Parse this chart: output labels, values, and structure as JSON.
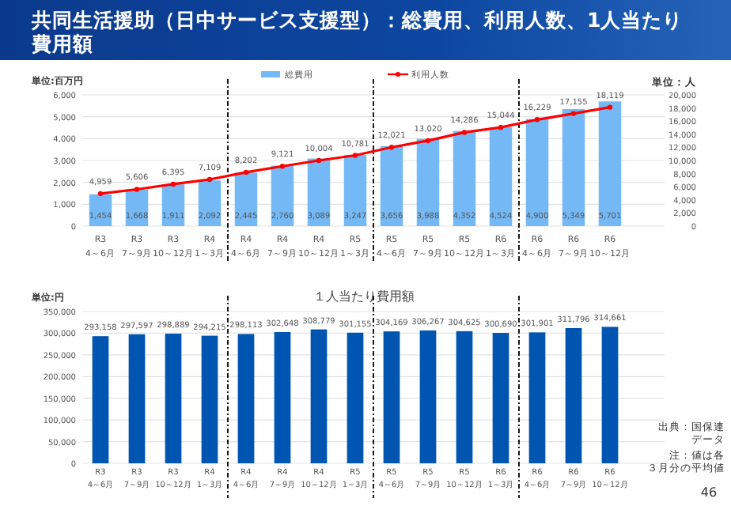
{
  "chart_data": [
    {
      "type": "bar",
      "title": "共同生活援助（日中サービス支援型）：総費用、利用人数、1人当たり費用額",
      "ylabel": "単位:百万円",
      "y2label": "単位：人",
      "categories": [
        "R3\n4～6月",
        "R3\n7～9月",
        "R3\n10～12月",
        "R4\n1～3月",
        "R4\n4～6月",
        "R4\n7～9月",
        "R4\n10～12月",
        "R5\n1～3月",
        "R5\n4～6月",
        "R5\n7～9月",
        "R5\n10～12月",
        "R6\n1～3月",
        "R6\n4～6月",
        "R6\n7～9月",
        "R6\n10～12月"
      ],
      "series": [
        {
          "name": "総費用",
          "color": "#74b9f5",
          "values": [
            1454,
            1668,
            1911,
            2092,
            2445,
            2760,
            3089,
            3247,
            3656,
            3988,
            4352,
            4524,
            4900,
            5349,
            5701
          ],
          "value_labels": [
            "1,454",
            "1,668",
            "1,911",
            "2,092",
            "2,445",
            "2,760",
            "3,089",
            "3,247",
            "3,656",
            "3,988",
            "4,352",
            "4,524",
            "4,900",
            "5,349",
            "5,701"
          ]
        },
        {
          "name": "利用人数",
          "type": "line",
          "axis": "y2",
          "color": "#ff0000",
          "marker": "circle",
          "values": [
            4959,
            5606,
            6395,
            7109,
            8202,
            9121,
            10004,
            10781,
            12021,
            13020,
            14286,
            15044,
            16229,
            17155,
            18119
          ],
          "value_labels": [
            "4,959",
            "5,606",
            "6,395",
            "7,109",
            "8,202",
            "9,121",
            "10,004",
            "10,781",
            "12,021",
            "13,020",
            "14,286",
            "15,044",
            "16,229",
            "17,155",
            "18,119"
          ]
        }
      ],
      "ylim": [
        0,
        6000
      ],
      "yticks": [
        0,
        {
          "value": 1000,
          "label": "1,000"
        },
        {
          "value": 2000,
          "label": "2,000"
        },
        {
          "value": 3000,
          "label": "3,000"
        },
        {
          "value": 4000,
          "label": "4,000"
        },
        {
          "value": 5000,
          "label": "5,000"
        },
        {
          "value": 6000,
          "label": "6,000"
        }
      ],
      "y2lim": [
        0,
        20000
      ],
      "y2ticks": [
        0,
        {
          "value": 2000,
          "label": "2,000"
        },
        {
          "value": 4000,
          "label": "4,000"
        },
        {
          "value": 6000,
          "label": "6,000"
        },
        {
          "value": 8000,
          "label": "8,000"
        },
        {
          "value": 10000,
          "label": "10,000"
        },
        {
          "value": 12000,
          "label": "12,000"
        },
        {
          "value": 14000,
          "label": "14,000"
        },
        {
          "value": 16000,
          "label": "16,000"
        },
        {
          "value": 18000,
          "label": "18,000"
        },
        {
          "value": 20000,
          "label": "20,000"
        }
      ],
      "grid": "y",
      "legend": "top"
    },
    {
      "type": "bar",
      "title": "１人当たり費用額",
      "ylabel": "単位:円",
      "categories": [
        "R3\n4～6月",
        "R3\n7～9月",
        "R3\n10～12月",
        "R4\n1～3月",
        "R4\n4～6月",
        "R4\n7～9月",
        "R4\n10～12月",
        "R5\n1～3月",
        "R5\n4～6月",
        "R5\n7～9月",
        "R5\n10～12月",
        "R6\n1～3月",
        "R6\n4～6月",
        "R6\n7～9月",
        "R6\n10～12月"
      ],
      "values": [
        293158,
        297597,
        298889,
        294215,
        298113,
        302648,
        308779,
        301155,
        304169,
        306267,
        304625,
        300690,
        301901,
        311796,
        314661
      ],
      "value_labels": [
        "293,158",
        "297,597",
        "298,889",
        "294,215",
        "298,113",
        "302,648",
        "308,779",
        "301,155",
        "304,169",
        "306,267",
        "304,625",
        "300,690",
        "301,901",
        "311,796",
        "314,661"
      ],
      "color": "#0055b0",
      "ylim": [
        0,
        350000
      ],
      "yticks": [
        0,
        {
          "value": 50000,
          "label": "50,000"
        },
        {
          "value": 100000,
          "label": "100,000"
        },
        {
          "value": 150000,
          "label": "150,000"
        },
        {
          "value": 200000,
          "label": "200,000"
        },
        {
          "value": 250000,
          "label": "250,000"
        },
        {
          "value": 300000,
          "label": "300,000"
        },
        {
          "value": 350000,
          "label": "350,000"
        }
      ],
      "grid": "y",
      "annotations": [
        "出典：国保連データ",
        "注：値は各３月分の平均値",
        "46"
      ]
    }
  ]
}
